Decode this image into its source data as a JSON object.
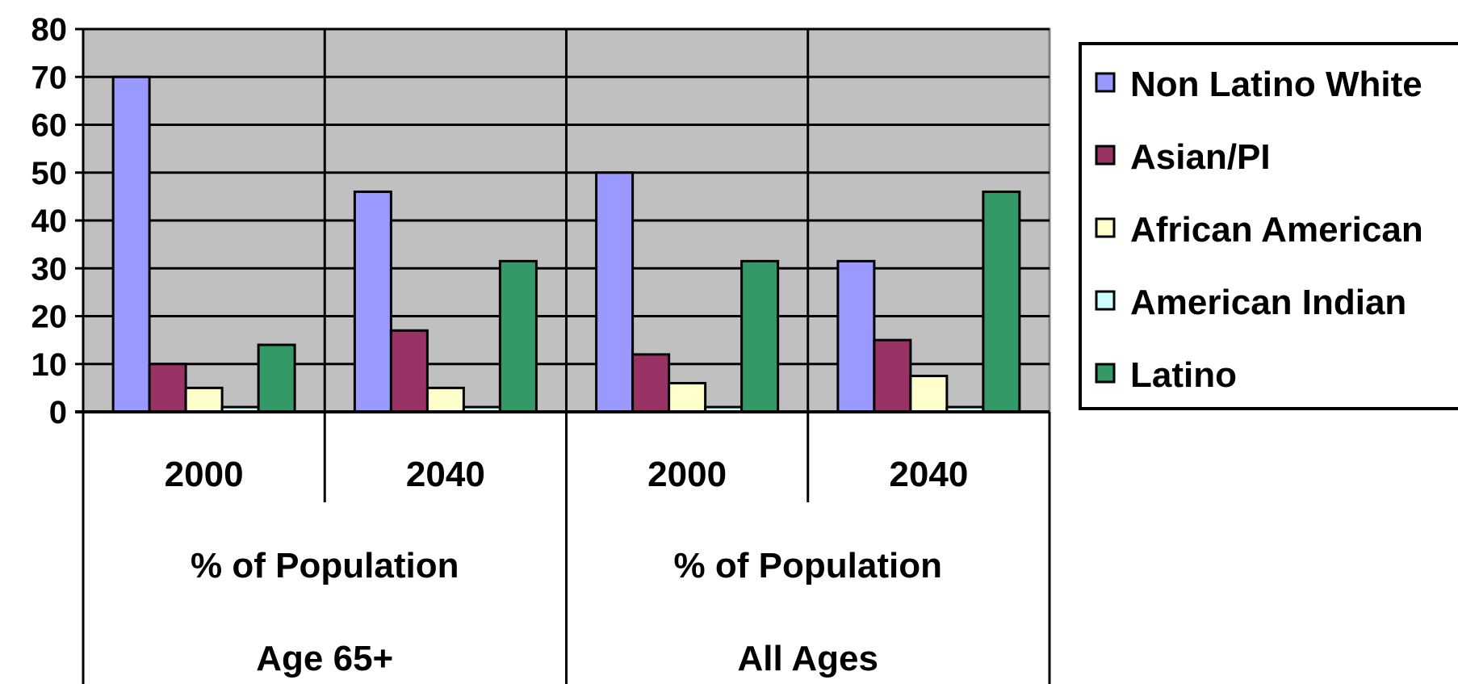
{
  "chart_data": {
    "type": "bar",
    "categories": [
      {
        "year": "2000",
        "group": "% of  Population",
        "subgroup": "Age 65+"
      },
      {
        "year": "2040",
        "group": "% of  Population",
        "subgroup": "Age 65+"
      },
      {
        "year": "2000",
        "group": "% of Population",
        "subgroup": "All Ages"
      },
      {
        "year": "2040",
        "group": "% of Population",
        "subgroup": "All Ages"
      }
    ],
    "group_labels": [
      {
        "label": "% of  Population",
        "sublabel": "Age 65+"
      },
      {
        "label": "% of Population",
        "sublabel": "All Ages"
      }
    ],
    "series": [
      {
        "name": "Non Latino White",
        "color": "#9999FF",
        "values": [
          70,
          46,
          50,
          31.5
        ]
      },
      {
        "name": "Asian/PI",
        "color": "#993366",
        "values": [
          10,
          17,
          12,
          15
        ]
      },
      {
        "name": "African American",
        "color": "#FFFFCC",
        "values": [
          5,
          5,
          6,
          7.5
        ]
      },
      {
        "name": "American Indian",
        "color": "#CCFFFF",
        "values": [
          1,
          1,
          1,
          1
        ]
      },
      {
        "name": "Latino",
        "color": "#339966",
        "values": [
          14,
          31.5,
          31.5,
          46
        ]
      }
    ],
    "ylim": [
      0,
      80
    ],
    "yticks": [
      "0",
      "10",
      "20",
      "30",
      "40",
      "50",
      "60",
      "70",
      "80"
    ],
    "grid": true,
    "plot_background": "#C0C0C0",
    "legend_position": "right"
  }
}
